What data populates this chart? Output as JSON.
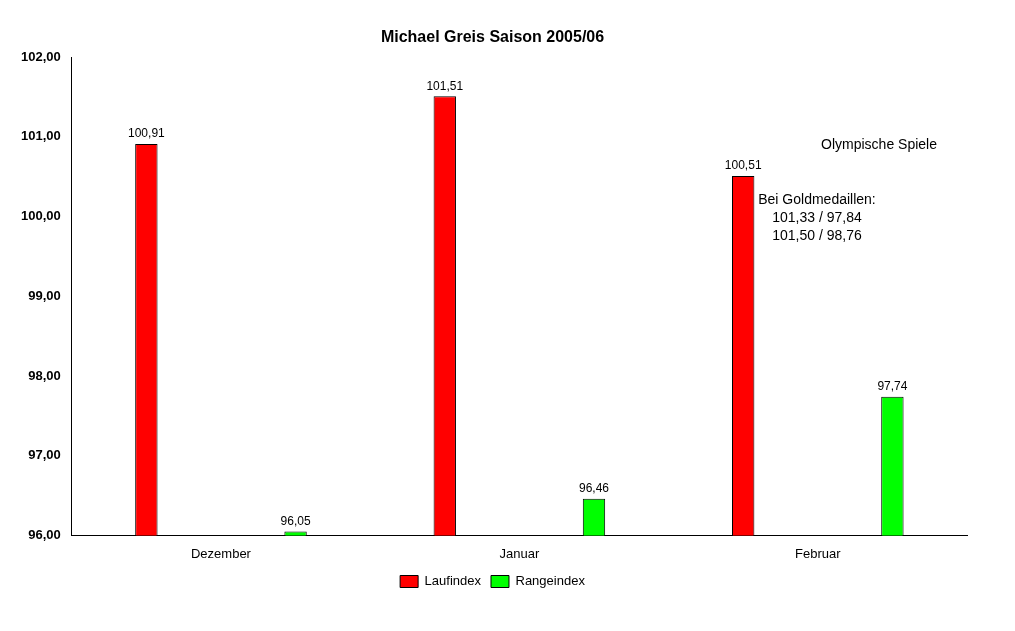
{
  "chart_data": {
    "type": "bar",
    "title": "Michael Greis Saison 2005/06",
    "categories": [
      "Dezember",
      "Januar",
      "Februar"
    ],
    "series": [
      {
        "name": "Laufindex",
        "color": "#ff0000",
        "values": [
          100.91,
          101.51,
          100.51
        ],
        "value_labels": [
          "100,91",
          "101,51",
          "100,51"
        ]
      },
      {
        "name": "Rangeindex",
        "color": "#00ff00",
        "values": [
          96.05,
          96.46,
          97.74
        ],
        "value_labels": [
          "96,05",
          "96,46",
          "97,74"
        ]
      }
    ],
    "ylim": [
      96,
      102
    ],
    "yticks": [
      {
        "value": 96,
        "label": "96,00"
      },
      {
        "value": 97,
        "label": "97,00"
      },
      {
        "value": 98,
        "label": "98,00"
      },
      {
        "value": 99,
        "label": "99,00"
      },
      {
        "value": 100,
        "label": "100,00"
      },
      {
        "value": 101,
        "label": "101,00"
      },
      {
        "value": 102,
        "label": "102,00"
      }
    ],
    "annotations": [
      "Olympische Spiele",
      "Bei Goldmedaillen:",
      "101,33 / 97,84",
      "101,50 / 98,76"
    ],
    "grid": false,
    "legend": "bottom"
  }
}
